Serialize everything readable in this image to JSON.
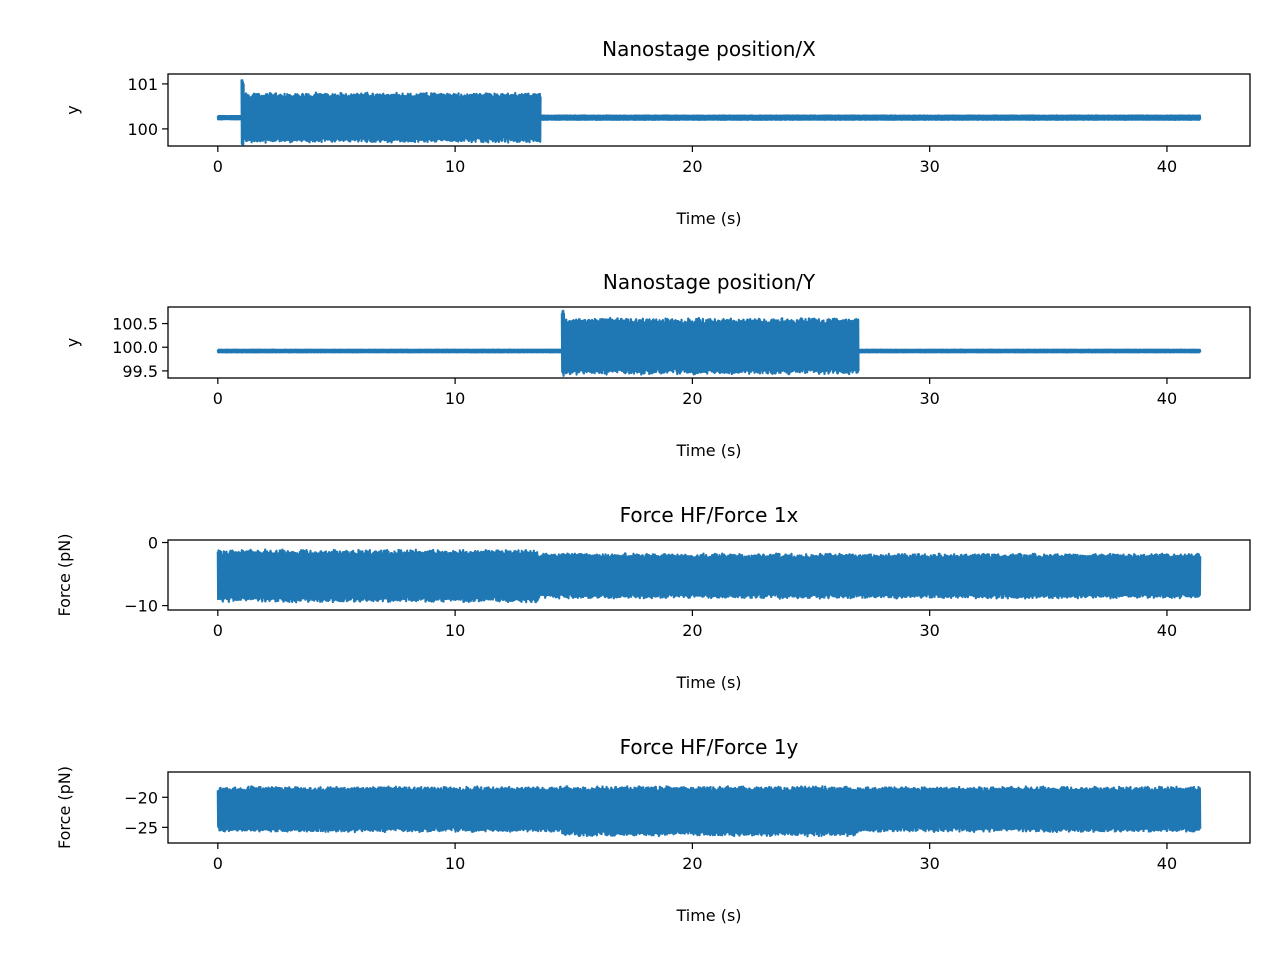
{
  "chart_data": [
    {
      "type": "line",
      "title": "Nanostage position/X",
      "xlabel": "Time (s)",
      "ylabel": "y",
      "xlim": [
        -2.1,
        43.5
      ],
      "ylim": [
        99.62,
        101.22
      ],
      "xticks": [
        {
          "v": 0,
          "label": "0"
        },
        {
          "v": 10,
          "label": "10"
        },
        {
          "v": 20,
          "label": "20"
        },
        {
          "v": 30,
          "label": "30"
        },
        {
          "v": 40,
          "label": "40"
        }
      ],
      "yticks": [
        {
          "v": 100,
          "label": "100"
        },
        {
          "v": 101,
          "label": "101"
        }
      ],
      "series": [
        {
          "color": "#1f77b4",
          "segments": [
            {
              "t0": 0.0,
              "t1": 1.0,
              "center": 100.25,
              "amp": 0.04
            },
            {
              "t0": 1.0,
              "t1": 1.1,
              "center": 100.4,
              "amp": 0.78
            },
            {
              "t0": 1.1,
              "t1": 13.6,
              "center": 100.25,
              "amp": 0.56
            },
            {
              "t0": 13.6,
              "t1": 41.4,
              "center": 100.25,
              "amp": 0.05
            }
          ]
        }
      ]
    },
    {
      "type": "line",
      "title": "Nanostage position/Y",
      "xlabel": "Time (s)",
      "ylabel": "y",
      "xlim": [
        -2.1,
        43.5
      ],
      "ylim": [
        99.35,
        100.85
      ],
      "xticks": [
        {
          "v": 0,
          "label": "0"
        },
        {
          "v": 10,
          "label": "10"
        },
        {
          "v": 20,
          "label": "20"
        },
        {
          "v": 30,
          "label": "30"
        },
        {
          "v": 40,
          "label": "40"
        }
      ],
      "yticks": [
        {
          "v": 99.5,
          "label": "99.5"
        },
        {
          "v": 100.0,
          "label": "100.0"
        },
        {
          "v": 100.5,
          "label": "100.5"
        }
      ],
      "series": [
        {
          "color": "#1f77b4",
          "segments": [
            {
              "t0": 0.0,
              "t1": 14.5,
              "center": 99.92,
              "amp": 0.03
            },
            {
              "t0": 14.5,
              "t1": 14.6,
              "center": 100.1,
              "amp": 0.73
            },
            {
              "t0": 14.6,
              "t1": 27.0,
              "center": 100.02,
              "amp": 0.6
            },
            {
              "t0": 27.0,
              "t1": 41.4,
              "center": 99.92,
              "amp": 0.03
            }
          ]
        }
      ]
    },
    {
      "type": "line",
      "title": "Force HF/Force 1x",
      "xlabel": "Time (s)",
      "ylabel": "Force (pN)",
      "xlim": [
        -2.1,
        43.5
      ],
      "ylim": [
        -10.7,
        0.4
      ],
      "xticks": [
        {
          "v": 0,
          "label": "0"
        },
        {
          "v": 10,
          "label": "10"
        },
        {
          "v": 20,
          "label": "20"
        },
        {
          "v": 30,
          "label": "30"
        },
        {
          "v": 40,
          "label": "40"
        }
      ],
      "yticks": [
        {
          "v": -10,
          "label": "−10"
        },
        {
          "v": 0,
          "label": "0"
        }
      ],
      "series": [
        {
          "color": "#1f77b4",
          "segments": [
            {
              "t0": 0.0,
              "t1": 13.5,
              "center": -5.3,
              "amp": 4.2
            },
            {
              "t0": 13.5,
              "t1": 41.4,
              "center": -5.3,
              "amp": 3.6
            }
          ]
        }
      ]
    },
    {
      "type": "line",
      "title": "Force HF/Force 1y",
      "xlabel": "Time (s)",
      "ylabel": "Force (pN)",
      "xlim": [
        -2.1,
        43.5
      ],
      "ylim": [
        -27.6,
        -15.8
      ],
      "xticks": [
        {
          "v": 0,
          "label": "0"
        },
        {
          "v": 10,
          "label": "10"
        },
        {
          "v": 20,
          "label": "20"
        },
        {
          "v": 30,
          "label": "30"
        },
        {
          "v": 40,
          "label": "40"
        }
      ],
      "yticks": [
        {
          "v": -25,
          "label": "−25"
        },
        {
          "v": -20,
          "label": "−20"
        }
      ],
      "series": [
        {
          "color": "#1f77b4",
          "segments": [
            {
              "t0": 0.0,
              "t1": 14.5,
              "center": -22.0,
              "amp": 3.8
            },
            {
              "t0": 14.5,
              "t1": 27.0,
              "center": -22.3,
              "amp": 4.2
            },
            {
              "t0": 27.0,
              "t1": 41.4,
              "center": -22.0,
              "amp": 3.8
            }
          ]
        }
      ]
    }
  ]
}
